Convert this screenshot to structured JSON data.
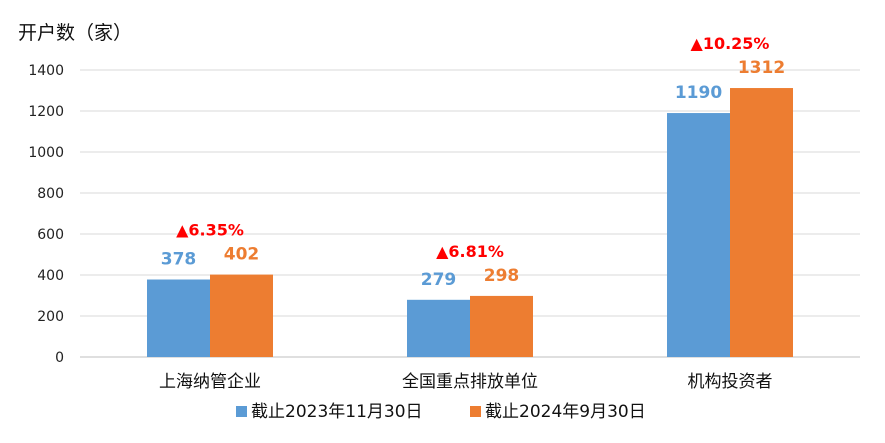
{
  "chart_data": {
    "type": "bar",
    "ylabel": "开户数（家）",
    "ylim": [
      0,
      1400
    ],
    "yticks": [
      "0",
      "200",
      "400",
      "600",
      "800",
      "1000",
      "1200",
      "1400"
    ],
    "grid": true,
    "legend_position": "bottom",
    "categories": [
      "上海纳管企业",
      "全国重点排放单位",
      "机构投资者"
    ],
    "series": [
      {
        "name": "截止2023年11月30日",
        "color": "#5B9BD5",
        "values": [
          378,
          279,
          1190
        ],
        "labels": [
          "378",
          "279",
          "1190"
        ]
      },
      {
        "name": "截止2024年9月30日",
        "color": "#ED7D31",
        "values": [
          402,
          298,
          1312
        ],
        "labels": [
          "402",
          "298",
          "1312"
        ]
      }
    ],
    "annotations": [
      "▲6.35%",
      "▲6.81%",
      "▲10.25%"
    ],
    "annotation_color": "#FF0000"
  }
}
